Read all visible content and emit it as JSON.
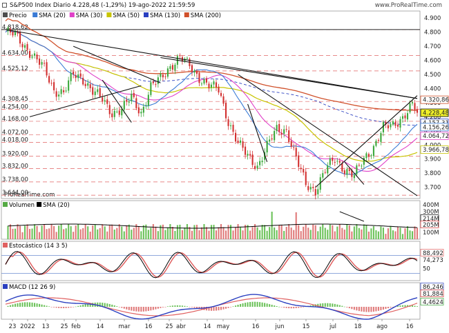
{
  "header": {
    "title": "S&P500 Index Diario 4.228,48 (-1,29%) 19-ago-2022 21:59:59",
    "brand": "www.ProRealTime.com"
  },
  "price_panel": {
    "legend": [
      {
        "label": "Precio",
        "color": "#4d4d4d"
      },
      {
        "label": "SMA (20)",
        "color": "#3a7bd5"
      },
      {
        "label": "SMA (30)",
        "color": "#e040c8"
      },
      {
        "label": "SMA (50)",
        "color": "#c8c400"
      },
      {
        "label": "SMA (130)",
        "color": "#2a3fc0"
      },
      {
        "label": "SMA (200)",
        "color": "#d0502a"
      }
    ],
    "left_levels": [
      "4.818,62",
      "4.634,00",
      "4.525,12",
      "4.308,45",
      "4.254,00",
      "4.168,00",
      "4.072,00",
      "4.018,00",
      "3.920,00",
      "3.832,00",
      "3.738,00",
      "3.644,00"
    ],
    "right_ticks": [
      "4.900",
      "4.800",
      "4.700",
      "4.600",
      "4.500",
      "4.400",
      "4.300",
      "4.200",
      "4.100",
      "4.000",
      "3.900",
      "3.800",
      "3.700"
    ],
    "value_badges": [
      {
        "label": "4.320,86",
        "color": "#d0502a"
      },
      {
        "label": "4.228,48",
        "color": "#000000"
      },
      {
        "label": "4.157,31",
        "color": "#2a3fc0"
      },
      {
        "label": "4.156,26",
        "color": "#3a7bd5"
      },
      {
        "label": "4.064,72",
        "color": "#e040c8"
      },
      {
        "label": "3.966,78",
        "color": "#c8c400"
      }
    ],
    "watermark": "ProRealTime.com"
  },
  "volume_panel": {
    "legend": [
      {
        "label": "Volumen",
        "color": "#55aa44"
      },
      {
        "label": "SMA (20)",
        "color": "#000000"
      }
    ],
    "ticks": [
      "400M",
      "300M",
      "214M",
      "205M",
      "100M"
    ]
  },
  "stoch_panel": {
    "legend": "Estocástico (14 3 5)",
    "ticks": [
      "88,492",
      "74,273",
      "50"
    ]
  },
  "macd_panel": {
    "legend": "MACD (12 26 9)",
    "ticks": [
      "86,246",
      "81,884",
      "4,4624"
    ]
  },
  "x_axis": {
    "labels": [
      "23",
      "2022",
      "13",
      "25",
      "feb",
      "14",
      "mar",
      "16",
      "25",
      "abr",
      "14",
      "may",
      "16",
      "jun",
      "15",
      "jul",
      "18",
      "ago",
      "16"
    ]
  },
  "chart_data": {
    "type": "candlestick",
    "title": "S&P500 Index Diario 4.228,48 (-1,29%) 19-ago-2022 21:59:59",
    "price_range": [
      3620,
      4950
    ],
    "grid": false,
    "series_names": [
      "Precio",
      "SMA (20)",
      "SMA (30)",
      "SMA (50)",
      "SMA (130)",
      "SMA (200)",
      "Volumen",
      "Estocástico (14 3 5)",
      "MACD (12 26 9)"
    ],
    "last_values": {
      "Precio": 4228.48,
      "SMA (20)": 4156.26,
      "SMA (30)": 4064.72,
      "SMA (50)": 3966.78,
      "SMA (130)": 4157.31,
      "SMA (200)": 4320.86,
      "Volumen SMA (20)": "214M",
      "Volumen": "205M",
      "Estocástico": [
        88.492,
        74.273
      ],
      "MACD": [
        86.246,
        81.884,
        4.4624
      ]
    },
    "close_path": [
      [
        0,
        4800
      ],
      [
        4,
        4780
      ],
      [
        8,
        4700
      ],
      [
        12,
        4620
      ],
      [
        16,
        4540
      ],
      [
        20,
        4390
      ],
      [
        24,
        4370
      ],
      [
        28,
        4500
      ],
      [
        32,
        4470
      ],
      [
        36,
        4380
      ],
      [
        40,
        4320
      ],
      [
        44,
        4230
      ],
      [
        48,
        4250
      ],
      [
        52,
        4340
      ],
      [
        56,
        4230
      ],
      [
        60,
        4410
      ],
      [
        64,
        4470
      ],
      [
        68,
        4560
      ],
      [
        72,
        4620
      ],
      [
        76,
        4560
      ],
      [
        80,
        4480
      ],
      [
        84,
        4420
      ],
      [
        88,
        4390
      ],
      [
        92,
        4170
      ],
      [
        96,
        4010
      ],
      [
        100,
        3920
      ],
      [
        104,
        3850
      ],
      [
        108,
        3990
      ],
      [
        112,
        4110
      ],
      [
        116,
        4110
      ],
      [
        120,
        3900
      ],
      [
        124,
        3720
      ],
      [
        128,
        3680
      ],
      [
        132,
        3820
      ],
      [
        136,
        3900
      ],
      [
        140,
        3830
      ],
      [
        144,
        3780
      ],
      [
        148,
        3900
      ],
      [
        152,
        3990
      ],
      [
        156,
        4120
      ],
      [
        160,
        4140
      ],
      [
        164,
        4200
      ],
      [
        168,
        4280
      ],
      [
        170,
        4228
      ]
    ]
  }
}
